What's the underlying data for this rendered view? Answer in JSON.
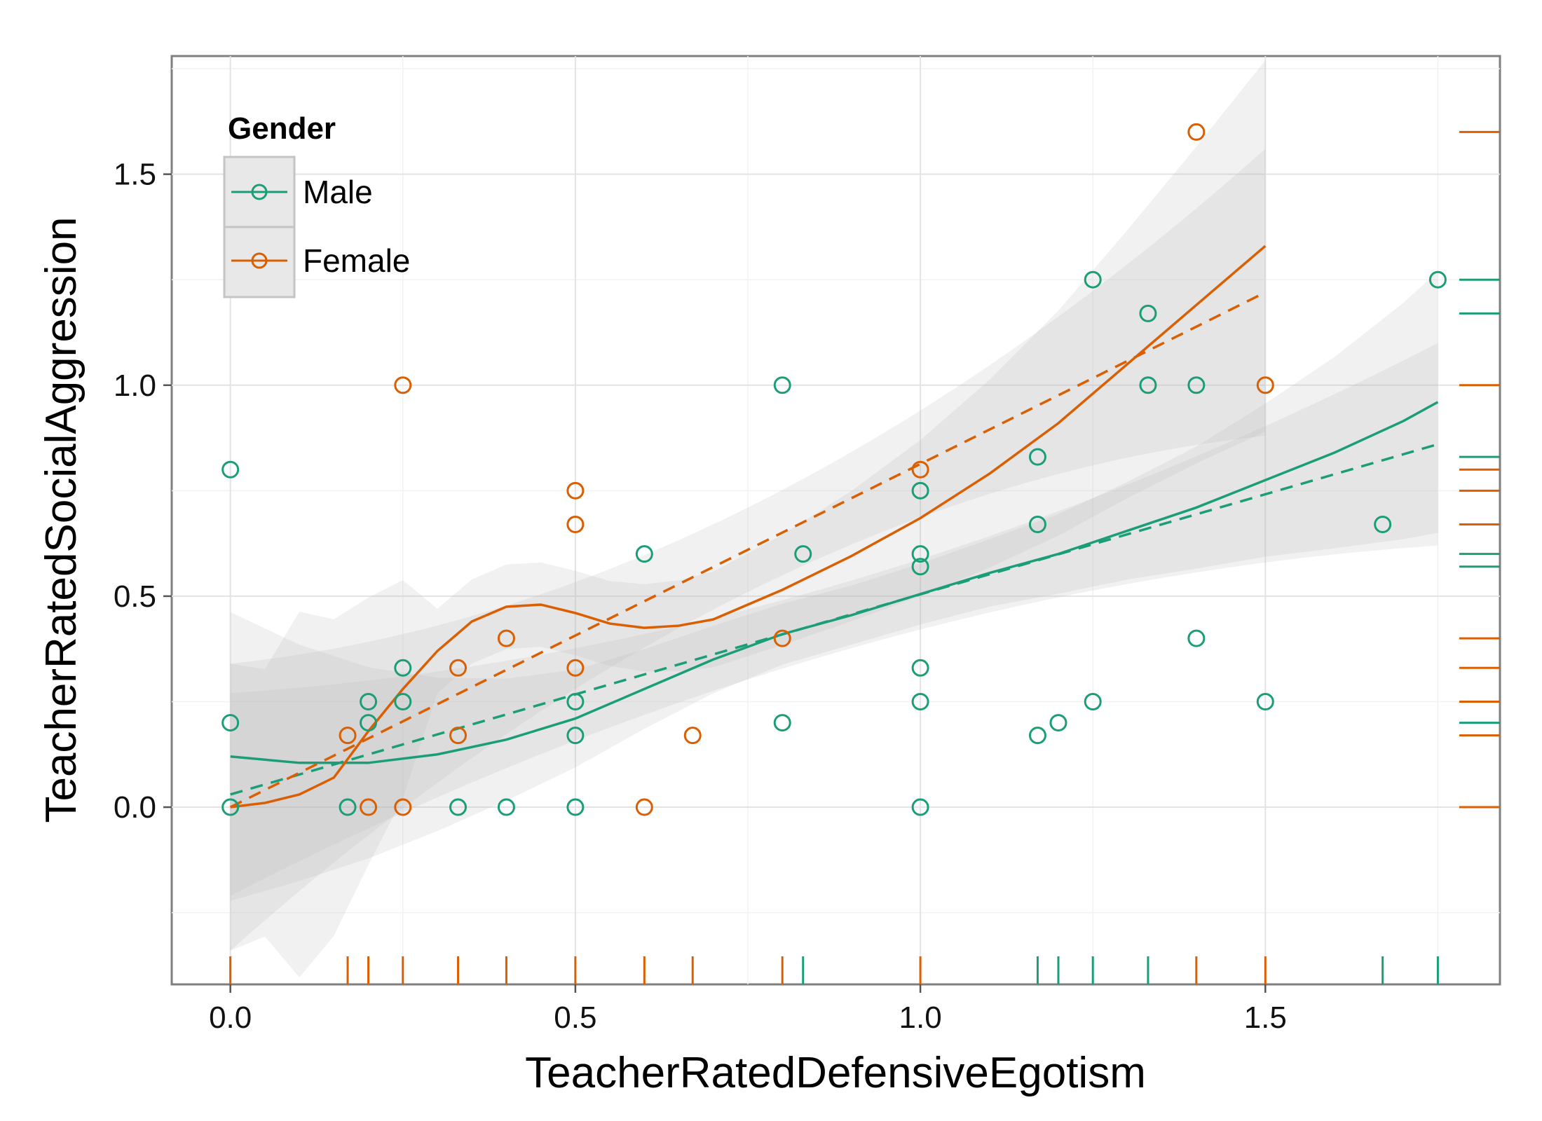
{
  "chart_data": {
    "type": "scatter",
    "xlabel": "TeacherRatedDefensiveEgotism",
    "ylabel": "TeacherRatedSocialAggression",
    "xlim": [
      -0.085,
      1.84
    ],
    "ylim": [
      -0.42,
      1.78
    ],
    "x_ticks": [
      "0.0",
      "0.5",
      "1.0",
      "1.5"
    ],
    "x_tick_values": [
      0,
      0.5,
      1.0,
      1.5
    ],
    "y_ticks": [
      "0.0",
      "0.5",
      "1.0",
      "1.5"
    ],
    "y_tick_values": [
      0,
      0.5,
      1.0,
      1.5
    ],
    "grid": true,
    "legend_title": "Gender",
    "legend_position": "top-left",
    "marginal_rugs": true,
    "series": [
      {
        "name": "Male",
        "color": "#1b9e77",
        "points": [
          [
            0,
            0.8
          ],
          [
            0,
            0.2
          ],
          [
            0,
            0
          ],
          [
            0.17,
            0
          ],
          [
            0.2,
            0.25
          ],
          [
            0.2,
            0.2
          ],
          [
            0.25,
            0.33
          ],
          [
            0.25,
            0.25
          ],
          [
            0.33,
            0
          ],
          [
            0.4,
            0
          ],
          [
            0.5,
            0.25
          ],
          [
            0.5,
            0.17
          ],
          [
            0.5,
            0
          ],
          [
            0.6,
            0.6
          ],
          [
            0.8,
            1.0
          ],
          [
            0.8,
            0.2
          ],
          [
            0.83,
            0.6
          ],
          [
            1.0,
            0.75
          ],
          [
            1.0,
            0.6
          ],
          [
            1.0,
            0.57
          ],
          [
            1.0,
            0.33
          ],
          [
            1.0,
            0.25
          ],
          [
            1.0,
            0
          ],
          [
            1.17,
            0.83
          ],
          [
            1.17,
            0.67
          ],
          [
            1.17,
            0.17
          ],
          [
            1.2,
            0.2
          ],
          [
            1.25,
            1.25
          ],
          [
            1.25,
            0.25
          ],
          [
            1.33,
            1.17
          ],
          [
            1.33,
            1.0
          ],
          [
            1.4,
            1.0
          ],
          [
            1.4,
            0.4
          ],
          [
            1.5,
            0.25
          ],
          [
            1.67,
            0.67
          ],
          [
            1.75,
            1.25
          ]
        ],
        "linear_fit": [
          [
            0,
            0.03
          ],
          [
            1.75,
            0.86
          ]
        ],
        "smooth_fit": [
          [
            0,
            0.12
          ],
          [
            0.1,
            0.105
          ],
          [
            0.2,
            0.105
          ],
          [
            0.3,
            0.125
          ],
          [
            0.4,
            0.16
          ],
          [
            0.5,
            0.21
          ],
          [
            0.6,
            0.28
          ],
          [
            0.7,
            0.35
          ],
          [
            0.8,
            0.41
          ],
          [
            0.9,
            0.455
          ],
          [
            1.0,
            0.505
          ],
          [
            1.1,
            0.555
          ],
          [
            1.2,
            0.6
          ],
          [
            1.3,
            0.655
          ],
          [
            1.4,
            0.71
          ],
          [
            1.5,
            0.775
          ],
          [
            1.6,
            0.84
          ],
          [
            1.7,
            0.915
          ],
          [
            1.75,
            0.96
          ]
        ]
      },
      {
        "name": "Female",
        "color": "#d95f02",
        "points": [
          [
            0.17,
            0.17
          ],
          [
            0.2,
            0
          ],
          [
            0.25,
            1.0
          ],
          [
            0.25,
            0
          ],
          [
            0.33,
            0.33
          ],
          [
            0.33,
            0.17
          ],
          [
            0.4,
            0.4
          ],
          [
            0.5,
            0.75
          ],
          [
            0.5,
            0.67
          ],
          [
            0.5,
            0.33
          ],
          [
            0.6,
            0
          ],
          [
            0.67,
            0.17
          ],
          [
            0.8,
            0.4
          ],
          [
            1.0,
            0.8
          ],
          [
            1.4,
            1.6
          ],
          [
            1.5,
            1.0
          ]
        ],
        "linear_fit": [
          [
            0,
            0.0
          ],
          [
            1.5,
            1.22
          ]
        ],
        "smooth_fit": [
          [
            0,
            0.0
          ],
          [
            0.05,
            0.01
          ],
          [
            0.1,
            0.03
          ],
          [
            0.15,
            0.07
          ],
          [
            0.2,
            0.18
          ],
          [
            0.25,
            0.28
          ],
          [
            0.3,
            0.37
          ],
          [
            0.35,
            0.44
          ],
          [
            0.4,
            0.475
          ],
          [
            0.45,
            0.48
          ],
          [
            0.5,
            0.46
          ],
          [
            0.55,
            0.435
          ],
          [
            0.6,
            0.425
          ],
          [
            0.65,
            0.43
          ],
          [
            0.7,
            0.445
          ],
          [
            0.8,
            0.515
          ],
          [
            0.9,
            0.595
          ],
          [
            1.0,
            0.685
          ],
          [
            1.1,
            0.79
          ],
          [
            1.2,
            0.91
          ],
          [
            1.3,
            1.05
          ],
          [
            1.4,
            1.19
          ],
          [
            1.5,
            1.33
          ]
        ]
      }
    ],
    "y_rug": [
      {
        "series": "Female",
        "values": [
          1.6,
          1.0,
          0.8,
          0.75,
          0.67,
          0.4,
          0.33,
          0.25,
          0.17,
          0
        ]
      },
      {
        "series": "Male",
        "values": [
          1.25,
          1.17,
          0.83,
          0.6,
          0.57,
          0.2
        ]
      }
    ],
    "x_rug": [
      {
        "series": "Female",
        "values": [
          0,
          0.17,
          0.2,
          0.25,
          0.33,
          0.4,
          0.5,
          0.6,
          0.67,
          0.8,
          1.0,
          1.4,
          1.5
        ]
      },
      {
        "series": "Male",
        "values": [
          0.83,
          1.17,
          1.2,
          1.25,
          1.33,
          1.67,
          1.75
        ]
      }
    ]
  }
}
